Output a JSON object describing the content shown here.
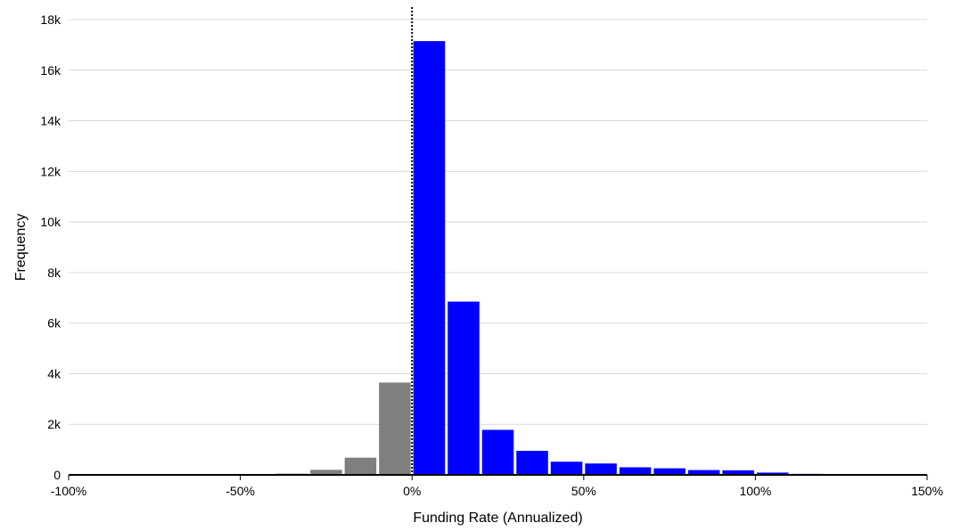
{
  "chart_data": {
    "type": "bar",
    "xlabel": "Funding Rate (Annualized)",
    "ylabel": "Frequency",
    "xlim": [
      -100,
      150
    ],
    "ylim": [
      0,
      18000
    ],
    "x_tick_values": [
      -100,
      -50,
      0,
      50,
      100,
      150
    ],
    "x_tick_labels": [
      "-100%",
      "-50%",
      "0%",
      "50%",
      "100%",
      "150%"
    ],
    "y_tick_values": [
      0,
      2000,
      4000,
      6000,
      8000,
      10000,
      12000,
      14000,
      16000,
      18000
    ],
    "y_tick_labels": [
      "0",
      "2k",
      "4k",
      "6k",
      "8k",
      "10k",
      "12k",
      "14k",
      "16k",
      "18k"
    ],
    "grid": true,
    "reference_line": {
      "x": 0,
      "style": "dotted"
    },
    "bin_width": 10,
    "bins": [
      {
        "x0": -100,
        "x1": -90,
        "value": 5
      },
      {
        "x0": -90,
        "x1": -80,
        "value": 5
      },
      {
        "x0": -80,
        "x1": -70,
        "value": 5
      },
      {
        "x0": -70,
        "x1": -60,
        "value": 5
      },
      {
        "x0": -60,
        "x1": -50,
        "value": 10
      },
      {
        "x0": -50,
        "x1": -40,
        "value": 20
      },
      {
        "x0": -40,
        "x1": -30,
        "value": 50
      },
      {
        "x0": -30,
        "x1": -20,
        "value": 200
      },
      {
        "x0": -20,
        "x1": -10,
        "value": 680
      },
      {
        "x0": -10,
        "x1": 0,
        "value": 3650
      },
      {
        "x0": 0,
        "x1": 10,
        "value": 17150
      },
      {
        "x0": 10,
        "x1": 20,
        "value": 6850
      },
      {
        "x0": 20,
        "x1": 30,
        "value": 1780
      },
      {
        "x0": 30,
        "x1": 40,
        "value": 950
      },
      {
        "x0": 40,
        "x1": 50,
        "value": 520
      },
      {
        "x0": 50,
        "x1": 60,
        "value": 450
      },
      {
        "x0": 60,
        "x1": 70,
        "value": 300
      },
      {
        "x0": 70,
        "x1": 80,
        "value": 260
      },
      {
        "x0": 80,
        "x1": 90,
        "value": 190
      },
      {
        "x0": 90,
        "x1": 100,
        "value": 180
      },
      {
        "x0": 100,
        "x1": 110,
        "value": 90
      },
      {
        "x0": 110,
        "x1": 120,
        "value": 40
      },
      {
        "x0": 120,
        "x1": 130,
        "value": 25
      },
      {
        "x0": 130,
        "x1": 140,
        "value": 15
      },
      {
        "x0": 140,
        "x1": 150,
        "value": 10
      }
    ],
    "colors": {
      "negative": "#7f7f7f",
      "positive": "#0000ff",
      "grid": "#d9d9d9",
      "axis": "#000000",
      "reference_line": "#000000"
    }
  }
}
